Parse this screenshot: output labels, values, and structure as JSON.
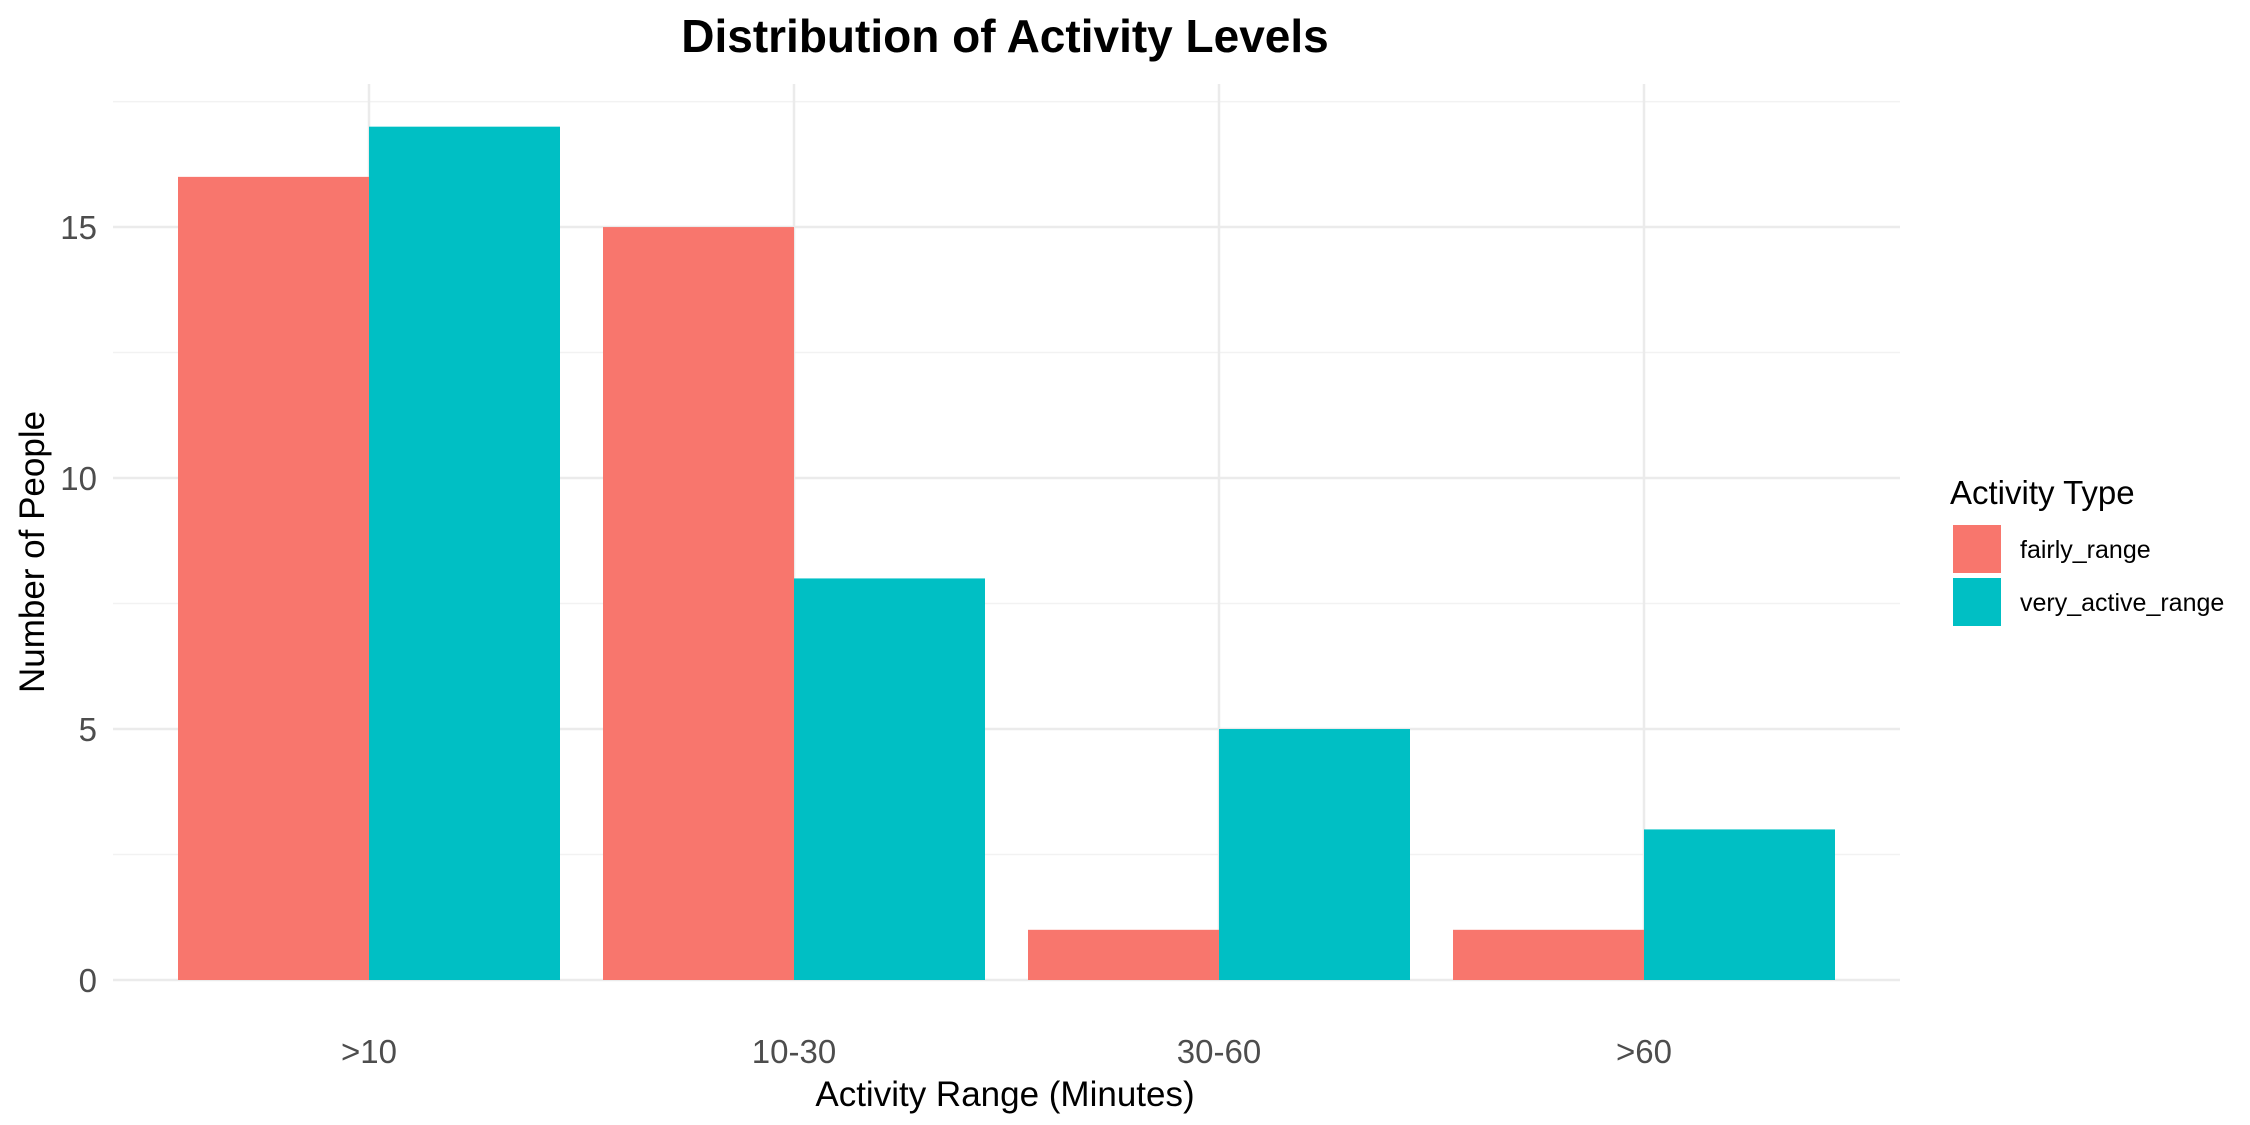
{
  "chart_data": {
    "type": "bar",
    "title": "Distribution of Activity Levels",
    "xlabel": "Activity Range (Minutes)",
    "ylabel": "Number of People",
    "categories": [
      ">10",
      "10-30",
      "30-60",
      ">60"
    ],
    "series": [
      {
        "name": "fairly_range",
        "values": [
          16,
          15,
          1,
          1
        ],
        "color": "#F8766D"
      },
      {
        "name": "very_active_range",
        "values": [
          17,
          8,
          5,
          3
        ],
        "color": "#00BFC4"
      }
    ],
    "ylim": [
      0,
      17.85
    ],
    "yticks": [
      0,
      5,
      10,
      15
    ],
    "yticks_minor": [
      2.5,
      7.5,
      12.5,
      17.5
    ],
    "grid": true,
    "legend": {
      "title": "Activity Type",
      "placement": "right"
    }
  }
}
